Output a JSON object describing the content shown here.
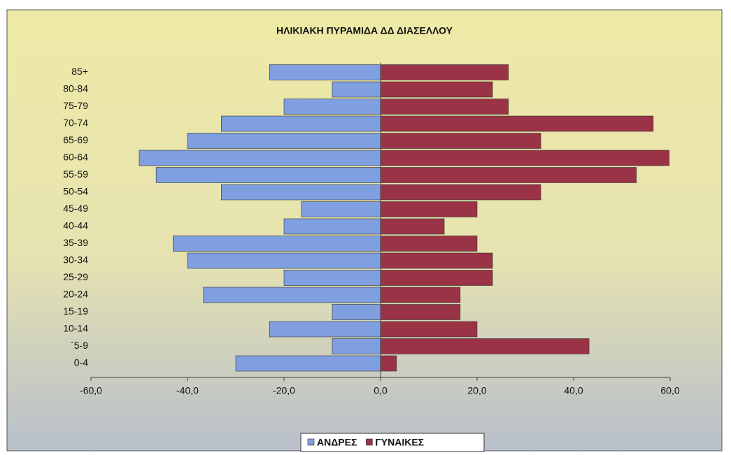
{
  "chart_data": {
    "type": "bar",
    "orientation": "horizontal",
    "title": "ΗΛΙΚΙΑΚΗ ΠΥΡΑΜΙΔΑ ΔΔ ΔΙΑΣΕΛΛΟΥ",
    "categories": [
      "0-4",
      "´5-9",
      "10-14",
      "15-19",
      "20-24",
      "25-29",
      "30-34",
      "35-39",
      "40-44",
      "45-49",
      "50-54",
      "55-59",
      "60-64",
      "65-69",
      "70-74",
      "75-79",
      "80-84",
      "85+"
    ],
    "series": [
      {
        "name": "ΑΝΔΡΕΣ",
        "color": "#7f9fe0",
        "values": [
          -30,
          -10,
          -23,
          -10,
          -36.7,
          -20,
          -40,
          -43,
          -20,
          -16.4,
          -33,
          -46.5,
          -50,
          -40,
          -33,
          -20,
          -10,
          -23
        ]
      },
      {
        "name": "ΓΥΝΑΙΚΕΣ",
        "color": "#9b3347",
        "values": [
          3.3,
          43.2,
          20,
          16.5,
          16.5,
          23.2,
          23.2,
          20,
          13.2,
          20,
          33.2,
          53,
          59.8,
          33.2,
          56.5,
          26.5,
          23.2,
          26.5
        ]
      }
    ],
    "xlim": [
      -60,
      60
    ],
    "xticks": [
      {
        "value": -60,
        "label": "-60,0"
      },
      {
        "value": -40,
        "label": "-40,0"
      },
      {
        "value": -20,
        "label": "-20,0"
      },
      {
        "value": 0,
        "label": "0,0"
      },
      {
        "value": 20,
        "label": "20,0"
      },
      {
        "value": 40,
        "label": "40,0"
      },
      {
        "value": 60,
        "label": "60,0"
      }
    ],
    "legend": "bottom"
  }
}
